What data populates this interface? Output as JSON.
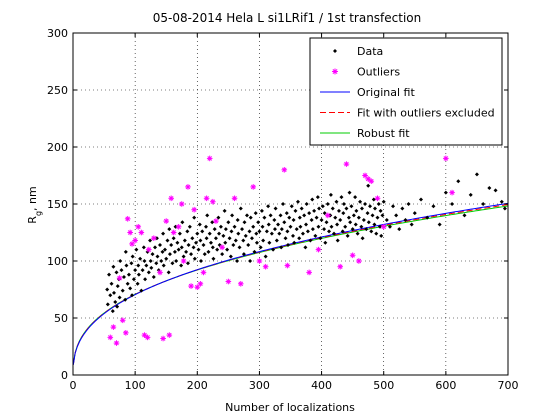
{
  "chart_data": {
    "type": "scatter",
    "title": "05-08-2014 Hela L si1LRif1 / 1st transfection",
    "xlabel": "Number of localizations",
    "ylabel_main": "R",
    "ylabel_sub": "g",
    "ylabel_tail": ", nm",
    "xlim": [
      0,
      700
    ],
    "ylim": [
      0,
      300
    ],
    "xticks": [
      0,
      100,
      200,
      300,
      400,
      500,
      600,
      700
    ],
    "yticks": [
      0,
      50,
      100,
      150,
      200,
      250,
      300
    ],
    "grid": true,
    "legend_position": "top-right",
    "colors": {
      "data": "#000000",
      "outliers": "#ff00ff",
      "original_fit": "#0000ff",
      "fit_excluded": "#ff0000",
      "robust_fit": "#00cc00"
    },
    "legend": [
      {
        "key": "data",
        "label": "Data",
        "kind": "dot"
      },
      {
        "key": "outliers",
        "label": "Outliers",
        "kind": "star"
      },
      {
        "key": "original_fit",
        "label": "Original fit",
        "kind": "line"
      },
      {
        "key": "fit_excluded",
        "label": "Fit with outliers excluded",
        "kind": "dash"
      },
      {
        "key": "robust_fit",
        "label": "Robust fit",
        "kind": "line"
      }
    ],
    "fit_model": "y = a * x^b",
    "fits": {
      "original_fit": {
        "a": 11.7,
        "b": 0.39
      },
      "fit_excluded": {
        "a": 12.0,
        "b": 0.385
      },
      "robust_fit": {
        "a": 12.3,
        "b": 0.38
      }
    },
    "outliers": [
      [
        60,
        33
      ],
      [
        65,
        42
      ],
      [
        70,
        28
      ],
      [
        75,
        85
      ],
      [
        80,
        48
      ],
      [
        85,
        37
      ],
      [
        88,
        137
      ],
      [
        92,
        125
      ],
      [
        95,
        115
      ],
      [
        100,
        118
      ],
      [
        105,
        130
      ],
      [
        110,
        125
      ],
      [
        115,
        35
      ],
      [
        120,
        33
      ],
      [
        122,
        110
      ],
      [
        130,
        120
      ],
      [
        140,
        90
      ],
      [
        145,
        32
      ],
      [
        150,
        135
      ],
      [
        155,
        35
      ],
      [
        158,
        155
      ],
      [
        162,
        125
      ],
      [
        170,
        130
      ],
      [
        175,
        150
      ],
      [
        178,
        100
      ],
      [
        185,
        165
      ],
      [
        190,
        78
      ],
      [
        195,
        145
      ],
      [
        200,
        77
      ],
      [
        205,
        80
      ],
      [
        210,
        90
      ],
      [
        215,
        155
      ],
      [
        220,
        190
      ],
      [
        225,
        152
      ],
      [
        230,
        135
      ],
      [
        240,
        112
      ],
      [
        250,
        82
      ],
      [
        260,
        155
      ],
      [
        270,
        80
      ],
      [
        290,
        165
      ],
      [
        300,
        100
      ],
      [
        310,
        95
      ],
      [
        340,
        180
      ],
      [
        345,
        96
      ],
      [
        380,
        90
      ],
      [
        395,
        110
      ],
      [
        410,
        140
      ],
      [
        430,
        95
      ],
      [
        440,
        185
      ],
      [
        450,
        105
      ],
      [
        460,
        100
      ],
      [
        470,
        175
      ],
      [
        475,
        172
      ],
      [
        480,
        170
      ],
      [
        490,
        155
      ],
      [
        500,
        130
      ],
      [
        600,
        190
      ],
      [
        610,
        160
      ]
    ],
    "data": [
      [
        55,
        75
      ],
      [
        56,
        62
      ],
      [
        58,
        88
      ],
      [
        60,
        70
      ],
      [
        62,
        80
      ],
      [
        64,
        56
      ],
      [
        65,
        95
      ],
      [
        66,
        72
      ],
      [
        68,
        64
      ],
      [
        70,
        90
      ],
      [
        71,
        60
      ],
      [
        72,
        78
      ],
      [
        74,
        84
      ],
      [
        75,
        68
      ],
      [
        76,
        100
      ],
      [
        78,
        92
      ],
      [
        80,
        74
      ],
      [
        82,
        86
      ],
      [
        84,
        66
      ],
      [
        85,
        108
      ],
      [
        86,
        96
      ],
      [
        88,
        80
      ],
      [
        90,
        88
      ],
      [
        92,
        76
      ],
      [
        94,
        98
      ],
      [
        95,
        70
      ],
      [
        96,
        104
      ],
      [
        98,
        84
      ],
      [
        100,
        92
      ],
      [
        102,
        110
      ],
      [
        104,
        80
      ],
      [
        105,
        96
      ],
      [
        106,
        88
      ],
      [
        108,
        102
      ],
      [
        110,
        74
      ],
      [
        112,
        92
      ],
      [
        114,
        112
      ],
      [
        115,
        100
      ],
      [
        116,
        84
      ],
      [
        118,
        96
      ],
      [
        120,
        108
      ],
      [
        122,
        90
      ],
      [
        124,
        118
      ],
      [
        125,
        100
      ],
      [
        126,
        94
      ],
      [
        128,
        106
      ],
      [
        130,
        86
      ],
      [
        132,
        112
      ],
      [
        134,
        98
      ],
      [
        135,
        120
      ],
      [
        136,
        104
      ],
      [
        138,
        92
      ],
      [
        140,
        114
      ],
      [
        142,
        100
      ],
      [
        144,
        108
      ],
      [
        145,
        124
      ],
      [
        146,
        96
      ],
      [
        148,
        110
      ],
      [
        150,
        102
      ],
      [
        152,
        118
      ],
      [
        154,
        90
      ],
      [
        155,
        128
      ],
      [
        156,
        106
      ],
      [
        158,
        114
      ],
      [
        160,
        98
      ],
      [
        162,
        120
      ],
      [
        164,
        108
      ],
      [
        165,
        130
      ],
      [
        166,
        100
      ],
      [
        168,
        116
      ],
      [
        170,
        110
      ],
      [
        172,
        124
      ],
      [
        174,
        96
      ],
      [
        175,
        112
      ],
      [
        176,
        134
      ],
      [
        178,
        104
      ],
      [
        180,
        118
      ],
      [
        182,
        108
      ],
      [
        184,
        126
      ],
      [
        185,
        98
      ],
      [
        186,
        114
      ],
      [
        188,
        130
      ],
      [
        190,
        106
      ],
      [
        192,
        120
      ],
      [
        194,
        112
      ],
      [
        195,
        138
      ],
      [
        196,
        102
      ],
      [
        198,
        116
      ],
      [
        200,
        124
      ],
      [
        202,
        110
      ],
      [
        204,
        132
      ],
      [
        205,
        118
      ],
      [
        206,
        100
      ],
      [
        208,
        126
      ],
      [
        210,
        114
      ],
      [
        212,
        106
      ],
      [
        214,
        130
      ],
      [
        215,
        120
      ],
      [
        216,
        140
      ],
      [
        218,
        108
      ],
      [
        220,
        124
      ],
      [
        222,
        116
      ],
      [
        224,
        134
      ],
      [
        225,
        112
      ],
      [
        226,
        102
      ],
      [
        228,
        128
      ],
      [
        230,
        120
      ],
      [
        232,
        110
      ],
      [
        234,
        138
      ],
      [
        235,
        124
      ],
      [
        236,
        114
      ],
      [
        238,
        130
      ],
      [
        240,
        106
      ],
      [
        242,
        122
      ],
      [
        244,
        144
      ],
      [
        245,
        116
      ],
      [
        246,
        128
      ],
      [
        248,
        110
      ],
      [
        250,
        134
      ],
      [
        252,
        120
      ],
      [
        254,
        104
      ],
      [
        255,
        126
      ],
      [
        256,
        140
      ],
      [
        258,
        114
      ],
      [
        260,
        130
      ],
      [
        262,
        118
      ],
      [
        264,
        100
      ],
      [
        265,
        136
      ],
      [
        266,
        124
      ],
      [
        268,
        112
      ],
      [
        270,
        146
      ],
      [
        272,
        128
      ],
      [
        274,
        118
      ],
      [
        275,
        106
      ],
      [
        276,
        134
      ],
      [
        278,
        122
      ],
      [
        280,
        140
      ],
      [
        282,
        114
      ],
      [
        284,
        126
      ],
      [
        285,
        100
      ],
      [
        286,
        138
      ],
      [
        288,
        120
      ],
      [
        290,
        130
      ],
      [
        292,
        108
      ],
      [
        294,
        142
      ],
      [
        295,
        124
      ],
      [
        296,
        116
      ],
      [
        298,
        134
      ],
      [
        300,
        126
      ],
      [
        302,
        112
      ],
      [
        304,
        144
      ],
      [
        305,
        130
      ],
      [
        306,
        118
      ],
      [
        308,
        138
      ],
      [
        310,
        104
      ],
      [
        312,
        126
      ],
      [
        314,
        148
      ],
      [
        315,
        132
      ],
      [
        316,
        116
      ],
      [
        318,
        140
      ],
      [
        320,
        124
      ],
      [
        322,
        110
      ],
      [
        324,
        136
      ],
      [
        325,
        128
      ],
      [
        326,
        146
      ],
      [
        328,
        118
      ],
      [
        330,
        132
      ],
      [
        332,
        124
      ],
      [
        334,
        140
      ],
      [
        335,
        112
      ],
      [
        336,
        128
      ],
      [
        338,
        150
      ],
      [
        340,
        134
      ],
      [
        342,
        120
      ],
      [
        344,
        142
      ],
      [
        345,
        126
      ],
      [
        346,
        114
      ],
      [
        348,
        138
      ],
      [
        350,
        130
      ],
      [
        352,
        148
      ],
      [
        354,
        122
      ],
      [
        355,
        136
      ],
      [
        356,
        116
      ],
      [
        358,
        144
      ],
      [
        360,
        128
      ],
      [
        362,
        152
      ],
      [
        364,
        120
      ],
      [
        365,
        138
      ],
      [
        366,
        130
      ],
      [
        368,
        146
      ],
      [
        370,
        124
      ],
      [
        372,
        140
      ],
      [
        374,
        112
      ],
      [
        375,
        132
      ],
      [
        376,
        150
      ],
      [
        378,
        126
      ],
      [
        380,
        142
      ],
      [
        382,
        118
      ],
      [
        384,
        136
      ],
      [
        385,
        154
      ],
      [
        386,
        128
      ],
      [
        388,
        144
      ],
      [
        390,
        122
      ],
      [
        392,
        138
      ],
      [
        394,
        156
      ],
      [
        395,
        130
      ],
      [
        396,
        146
      ],
      [
        398,
        120
      ],
      [
        400,
        136
      ],
      [
        402,
        148
      ],
      [
        404,
        128
      ],
      [
        405,
        142
      ],
      [
        406,
        116
      ],
      [
        408,
        134
      ],
      [
        410,
        150
      ],
      [
        412,
        126
      ],
      [
        414,
        140
      ],
      [
        415,
        158
      ],
      [
        416,
        130
      ],
      [
        418,
        146
      ],
      [
        420,
        124
      ],
      [
        422,
        138
      ],
      [
        424,
        152
      ],
      [
        425,
        132
      ],
      [
        426,
        118
      ],
      [
        428,
        144
      ],
      [
        430,
        136
      ],
      [
        432,
        156
      ],
      [
        434,
        126
      ],
      [
        435,
        142
      ],
      [
        436,
        150
      ],
      [
        438,
        130
      ],
      [
        440,
        146
      ],
      [
        442,
        122
      ],
      [
        444,
        138
      ],
      [
        445,
        160
      ],
      [
        446,
        134
      ],
      [
        448,
        148
      ],
      [
        450,
        128
      ],
      [
        452,
        140
      ],
      [
        454,
        156
      ],
      [
        455,
        132
      ],
      [
        456,
        144
      ],
      [
        458,
        124
      ],
      [
        460,
        138
      ],
      [
        462,
        152
      ],
      [
        464,
        130
      ],
      [
        465,
        146
      ],
      [
        466,
        120
      ],
      [
        468,
        136
      ],
      [
        470,
        150
      ],
      [
        472,
        128
      ],
      [
        474,
        142
      ],
      [
        475,
        166
      ],
      [
        476,
        134
      ],
      [
        478,
        148
      ],
      [
        480,
        126
      ],
      [
        482,
        140
      ],
      [
        484,
        154
      ],
      [
        485,
        132
      ],
      [
        486,
        146
      ],
      [
        488,
        124
      ],
      [
        490,
        138
      ],
      [
        492,
        150
      ],
      [
        494,
        130
      ],
      [
        495,
        144
      ],
      [
        496,
        122
      ],
      [
        498,
        140
      ],
      [
        500,
        152
      ],
      [
        505,
        136
      ],
      [
        510,
        130
      ],
      [
        515,
        148
      ],
      [
        520,
        140
      ],
      [
        525,
        128
      ],
      [
        530,
        146
      ],
      [
        535,
        136
      ],
      [
        540,
        150
      ],
      [
        545,
        132
      ],
      [
        550,
        142
      ],
      [
        560,
        154
      ],
      [
        570,
        138
      ],
      [
        580,
        148
      ],
      [
        590,
        132
      ],
      [
        600,
        160
      ],
      [
        610,
        150
      ],
      [
        620,
        170
      ],
      [
        630,
        140
      ],
      [
        640,
        158
      ],
      [
        650,
        176
      ],
      [
        660,
        150
      ],
      [
        670,
        164
      ],
      [
        680,
        162
      ],
      [
        690,
        152
      ],
      [
        695,
        146
      ]
    ]
  }
}
